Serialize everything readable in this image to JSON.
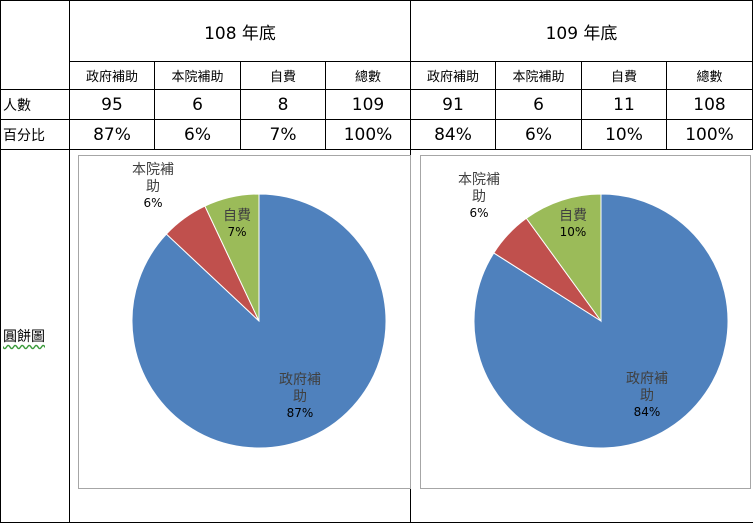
{
  "table": {
    "periods": [
      {
        "label": "108 年底",
        "columns": [
          "政府補助",
          "本院補助",
          "自費",
          "總數"
        ],
        "counts": [
          "95",
          "6",
          "8",
          "109"
        ],
        "percents": [
          "87%",
          "6%",
          "7%",
          "100%"
        ]
      },
      {
        "label": "109 年底",
        "columns": [
          "政府補助",
          "本院補助",
          "自費",
          "總數"
        ],
        "counts": [
          "91",
          "6",
          "11",
          "108"
        ],
        "percents": [
          "84%",
          "6%",
          "10%",
          "100%"
        ]
      }
    ],
    "row_labels": {
      "count": "人數",
      "percent": "百分比",
      "pie": "圓餅圖"
    }
  },
  "chart_data": [
    {
      "type": "pie",
      "categories": [
        "政府補助",
        "本院補助",
        "自費"
      ],
      "values": [
        87,
        6,
        7
      ],
      "labels": [
        {
          "name": "政府補助",
          "value": "87%"
        },
        {
          "name": "本院補助",
          "value": "6%"
        },
        {
          "name": "自費",
          "value": "7%"
        }
      ],
      "colors": [
        "#4f81bd",
        "#c0504d",
        "#9bbb59"
      ]
    },
    {
      "type": "pie",
      "categories": [
        "政府補助",
        "本院補助",
        "自費"
      ],
      "values": [
        84,
        6,
        10
      ],
      "labels": [
        {
          "name": "政府補助",
          "value": "84%"
        },
        {
          "name": "本院補助",
          "value": "6%"
        },
        {
          "name": "自費",
          "value": "10%"
        }
      ],
      "colors": [
        "#4f81bd",
        "#c0504d",
        "#9bbb59"
      ]
    }
  ]
}
